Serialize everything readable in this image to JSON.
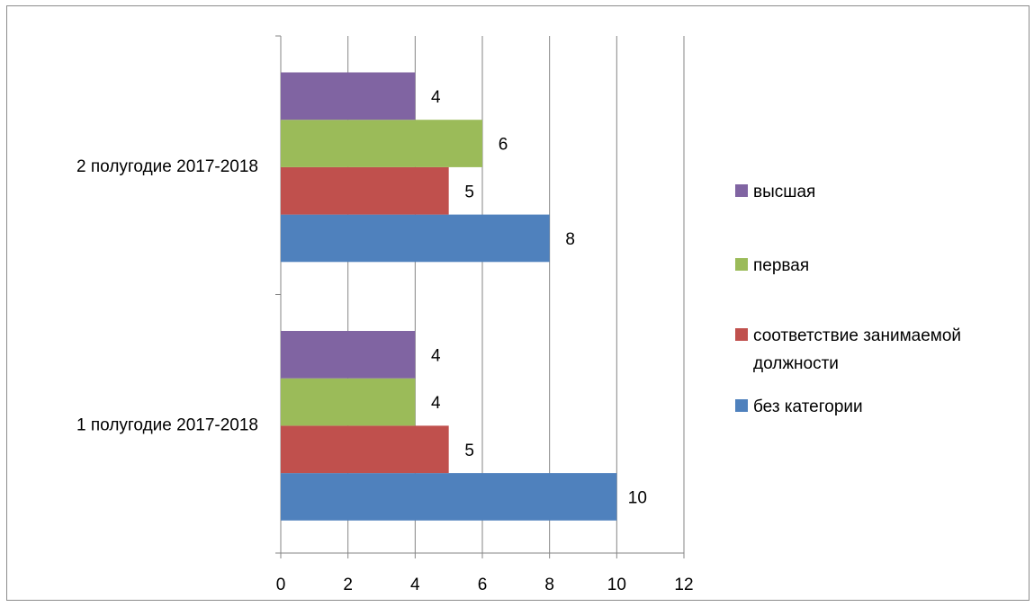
{
  "chart_data": {
    "type": "bar",
    "orientation": "horizontal",
    "title": "",
    "xlabel": "",
    "ylabel": "",
    "categories": [
      "1 полугодие 2017-2018",
      "2 полугодие 2017-2018"
    ],
    "series": [
      {
        "name": "без категории",
        "color": "#4F81BD",
        "values": [
          10,
          8
        ]
      },
      {
        "name": "соответствие занимаемой должности",
        "color": "#C0504D",
        "values": [
          5,
          5
        ]
      },
      {
        "name": "первая",
        "color": "#9BBB59",
        "values": [
          4,
          6
        ]
      },
      {
        "name": "высшая",
        "color": "#8064A2",
        "values": [
          4,
          4
        ]
      }
    ],
    "xlim": [
      0,
      12
    ],
    "xticks": [
      0,
      2,
      4,
      6,
      8,
      10,
      12
    ],
    "grid": true,
    "data_labels": true,
    "legend_position": "right"
  }
}
